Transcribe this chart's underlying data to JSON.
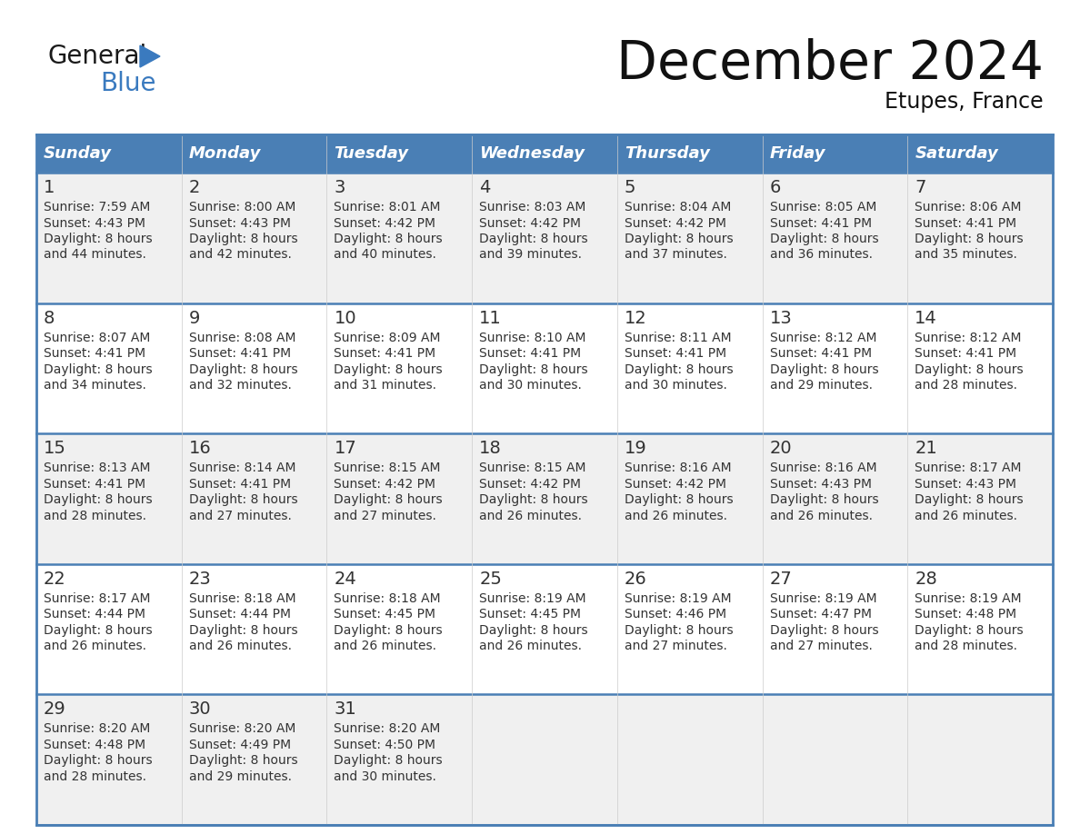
{
  "title": "December 2024",
  "subtitle": "Etupes, France",
  "days_of_week": [
    "Sunday",
    "Monday",
    "Tuesday",
    "Wednesday",
    "Thursday",
    "Friday",
    "Saturday"
  ],
  "header_bg": "#4a7fb5",
  "header_text": "#ffffff",
  "cell_bg_odd": "#f0f0f0",
  "cell_bg_even": "#ffffff",
  "day_number_color": "#333333",
  "text_color": "#333333",
  "grid_color": "#4a7fb5",
  "logo_general_color": "#1a1a1a",
  "logo_blue_color": "#3a7abf",
  "weeks": [
    [
      {
        "day": 1,
        "sunrise": "7:59 AM",
        "sunset": "4:43 PM",
        "daylight_line1": "Daylight: 8 hours",
        "daylight_line2": "and 44 minutes."
      },
      {
        "day": 2,
        "sunrise": "8:00 AM",
        "sunset": "4:43 PM",
        "daylight_line1": "Daylight: 8 hours",
        "daylight_line2": "and 42 minutes."
      },
      {
        "day": 3,
        "sunrise": "8:01 AM",
        "sunset": "4:42 PM",
        "daylight_line1": "Daylight: 8 hours",
        "daylight_line2": "and 40 minutes."
      },
      {
        "day": 4,
        "sunrise": "8:03 AM",
        "sunset": "4:42 PM",
        "daylight_line1": "Daylight: 8 hours",
        "daylight_line2": "and 39 minutes."
      },
      {
        "day": 5,
        "sunrise": "8:04 AM",
        "sunset": "4:42 PM",
        "daylight_line1": "Daylight: 8 hours",
        "daylight_line2": "and 37 minutes."
      },
      {
        "day": 6,
        "sunrise": "8:05 AM",
        "sunset": "4:41 PM",
        "daylight_line1": "Daylight: 8 hours",
        "daylight_line2": "and 36 minutes."
      },
      {
        "day": 7,
        "sunrise": "8:06 AM",
        "sunset": "4:41 PM",
        "daylight_line1": "Daylight: 8 hours",
        "daylight_line2": "and 35 minutes."
      }
    ],
    [
      {
        "day": 8,
        "sunrise": "8:07 AM",
        "sunset": "4:41 PM",
        "daylight_line1": "Daylight: 8 hours",
        "daylight_line2": "and 34 minutes."
      },
      {
        "day": 9,
        "sunrise": "8:08 AM",
        "sunset": "4:41 PM",
        "daylight_line1": "Daylight: 8 hours",
        "daylight_line2": "and 32 minutes."
      },
      {
        "day": 10,
        "sunrise": "8:09 AM",
        "sunset": "4:41 PM",
        "daylight_line1": "Daylight: 8 hours",
        "daylight_line2": "and 31 minutes."
      },
      {
        "day": 11,
        "sunrise": "8:10 AM",
        "sunset": "4:41 PM",
        "daylight_line1": "Daylight: 8 hours",
        "daylight_line2": "and 30 minutes."
      },
      {
        "day": 12,
        "sunrise": "8:11 AM",
        "sunset": "4:41 PM",
        "daylight_line1": "Daylight: 8 hours",
        "daylight_line2": "and 30 minutes."
      },
      {
        "day": 13,
        "sunrise": "8:12 AM",
        "sunset": "4:41 PM",
        "daylight_line1": "Daylight: 8 hours",
        "daylight_line2": "and 29 minutes."
      },
      {
        "day": 14,
        "sunrise": "8:12 AM",
        "sunset": "4:41 PM",
        "daylight_line1": "Daylight: 8 hours",
        "daylight_line2": "and 28 minutes."
      }
    ],
    [
      {
        "day": 15,
        "sunrise": "8:13 AM",
        "sunset": "4:41 PM",
        "daylight_line1": "Daylight: 8 hours",
        "daylight_line2": "and 28 minutes."
      },
      {
        "day": 16,
        "sunrise": "8:14 AM",
        "sunset": "4:41 PM",
        "daylight_line1": "Daylight: 8 hours",
        "daylight_line2": "and 27 minutes."
      },
      {
        "day": 17,
        "sunrise": "8:15 AM",
        "sunset": "4:42 PM",
        "daylight_line1": "Daylight: 8 hours",
        "daylight_line2": "and 27 minutes."
      },
      {
        "day": 18,
        "sunrise": "8:15 AM",
        "sunset": "4:42 PM",
        "daylight_line1": "Daylight: 8 hours",
        "daylight_line2": "and 26 minutes."
      },
      {
        "day": 19,
        "sunrise": "8:16 AM",
        "sunset": "4:42 PM",
        "daylight_line1": "Daylight: 8 hours",
        "daylight_line2": "and 26 minutes."
      },
      {
        "day": 20,
        "sunrise": "8:16 AM",
        "sunset": "4:43 PM",
        "daylight_line1": "Daylight: 8 hours",
        "daylight_line2": "and 26 minutes."
      },
      {
        "day": 21,
        "sunrise": "8:17 AM",
        "sunset": "4:43 PM",
        "daylight_line1": "Daylight: 8 hours",
        "daylight_line2": "and 26 minutes."
      }
    ],
    [
      {
        "day": 22,
        "sunrise": "8:17 AM",
        "sunset": "4:44 PM",
        "daylight_line1": "Daylight: 8 hours",
        "daylight_line2": "and 26 minutes."
      },
      {
        "day": 23,
        "sunrise": "8:18 AM",
        "sunset": "4:44 PM",
        "daylight_line1": "Daylight: 8 hours",
        "daylight_line2": "and 26 minutes."
      },
      {
        "day": 24,
        "sunrise": "8:18 AM",
        "sunset": "4:45 PM",
        "daylight_line1": "Daylight: 8 hours",
        "daylight_line2": "and 26 minutes."
      },
      {
        "day": 25,
        "sunrise": "8:19 AM",
        "sunset": "4:45 PM",
        "daylight_line1": "Daylight: 8 hours",
        "daylight_line2": "and 26 minutes."
      },
      {
        "day": 26,
        "sunrise": "8:19 AM",
        "sunset": "4:46 PM",
        "daylight_line1": "Daylight: 8 hours",
        "daylight_line2": "and 27 minutes."
      },
      {
        "day": 27,
        "sunrise": "8:19 AM",
        "sunset": "4:47 PM",
        "daylight_line1": "Daylight: 8 hours",
        "daylight_line2": "and 27 minutes."
      },
      {
        "day": 28,
        "sunrise": "8:19 AM",
        "sunset": "4:48 PM",
        "daylight_line1": "Daylight: 8 hours",
        "daylight_line2": "and 28 minutes."
      }
    ],
    [
      {
        "day": 29,
        "sunrise": "8:20 AM",
        "sunset": "4:48 PM",
        "daylight_line1": "Daylight: 8 hours",
        "daylight_line2": "and 28 minutes."
      },
      {
        "day": 30,
        "sunrise": "8:20 AM",
        "sunset": "4:49 PM",
        "daylight_line1": "Daylight: 8 hours",
        "daylight_line2": "and 29 minutes."
      },
      {
        "day": 31,
        "sunrise": "8:20 AM",
        "sunset": "4:50 PM",
        "daylight_line1": "Daylight: 8 hours",
        "daylight_line2": "and 30 minutes."
      },
      null,
      null,
      null,
      null
    ]
  ]
}
